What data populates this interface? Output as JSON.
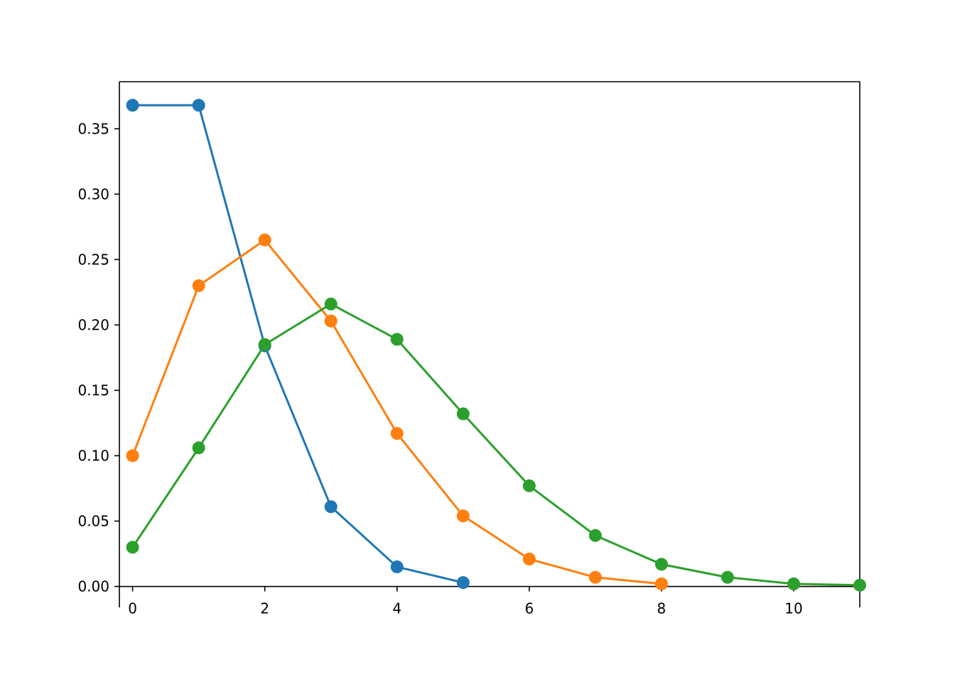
{
  "chart_data": {
    "type": "line",
    "series": [
      {
        "color": "#1f77b4",
        "x": [
          0,
          1,
          2,
          3,
          4,
          5
        ],
        "values": [
          0.368,
          0.368,
          0.184,
          0.061,
          0.015,
          0.003
        ]
      },
      {
        "color": "#ff7f0e",
        "x": [
          0,
          1,
          2,
          3,
          4,
          5,
          6,
          7,
          8
        ],
        "values": [
          0.1,
          0.23,
          0.265,
          0.203,
          0.117,
          0.054,
          0.021,
          0.007,
          0.002
        ]
      },
      {
        "color": "#2ca02c",
        "x": [
          0,
          1,
          2,
          3,
          4,
          5,
          6,
          7,
          8,
          9,
          10,
          11
        ],
        "values": [
          0.03,
          0.106,
          0.185,
          0.216,
          0.189,
          0.132,
          0.077,
          0.039,
          0.017,
          0.007,
          0.002,
          0.001
        ]
      }
    ],
    "xlim": [
      -0.2,
      11
    ],
    "ylim": [
      -0.016,
      0.386
    ],
    "xticks": [
      0,
      2,
      4,
      6,
      8,
      10
    ],
    "yticks": [
      {
        "value": 0,
        "label": "0.00"
      },
      {
        "value": 0.05,
        "label": "0.05"
      },
      {
        "value": 0.1,
        "label": "0.10"
      },
      {
        "value": 0.15,
        "label": "0.15"
      },
      {
        "value": 0.2,
        "label": "0.20"
      },
      {
        "value": 0.25,
        "label": "0.25"
      },
      {
        "value": 0.3,
        "label": "0.30"
      },
      {
        "value": 0.35,
        "label": "0.35"
      }
    ]
  }
}
